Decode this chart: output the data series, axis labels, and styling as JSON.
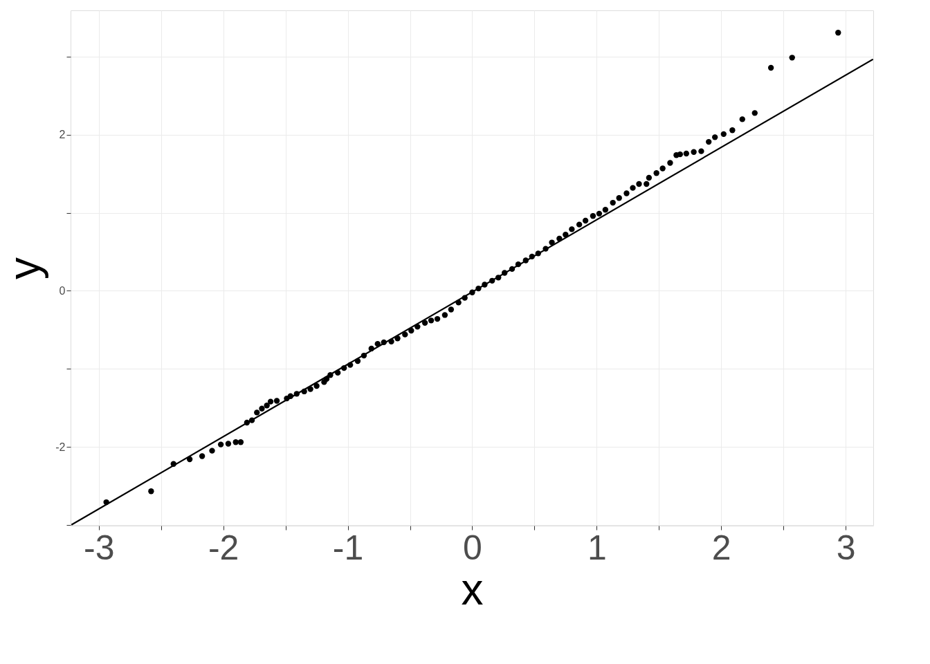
{
  "chart_data": {
    "type": "scatter",
    "xlabel": "x",
    "ylabel": "y",
    "xlim": [
      -3.227,
      3.222
    ],
    "ylim": [
      -3.011,
      3.596
    ],
    "xticks": [
      -3,
      {
        "value": -2.5,
        "label": null
      },
      -2,
      {
        "value": -1.5,
        "label": null
      },
      -1,
      {
        "value": -0.5,
        "label": null
      },
      0,
      {
        "value": 0.5,
        "label": null
      },
      1,
      {
        "value": 1.5,
        "label": null
      },
      2,
      {
        "value": 2.5,
        "label": null
      },
      3
    ],
    "yticks": [
      {
        "value": -3,
        "label": null
      },
      -2,
      {
        "value": -1,
        "label": null
      },
      0,
      {
        "value": 1,
        "label": null
      },
      2,
      {
        "value": 3,
        "label": null
      }
    ],
    "grid": true,
    "series": [
      {
        "color": "#000000",
        "marker": "circle",
        "x": [
          -2.94,
          -2.58,
          -2.4,
          -2.27,
          -2.17,
          -2.09,
          -2.02,
          -1.96,
          -1.9,
          -1.86,
          -1.81,
          -1.77,
          -1.73,
          -1.69,
          -1.65,
          -1.62,
          -1.57,
          -1.49,
          -1.46,
          -1.41,
          -1.35,
          -1.3,
          -1.25,
          -1.19,
          -1.17,
          -1.14,
          -1.08,
          -1.03,
          -0.98,
          -0.92,
          -0.87,
          -0.81,
          -0.76,
          -0.71,
          -0.65,
          -0.6,
          -0.54,
          -0.49,
          -0.44,
          -0.38,
          -0.33,
          -0.28,
          -0.22,
          -0.17,
          -0.11,
          -0.06,
          0.0,
          0.05,
          0.1,
          0.16,
          0.21,
          0.26,
          0.32,
          0.37,
          0.43,
          0.48,
          0.53,
          0.59,
          0.64,
          0.7,
          0.75,
          0.8,
          0.86,
          0.91,
          0.97,
          1.02,
          1.07,
          1.13,
          1.18,
          1.24,
          1.29,
          1.34,
          1.4,
          1.42,
          1.48,
          1.53,
          1.59,
          1.64,
          1.67,
          1.72,
          1.78,
          1.84,
          1.9,
          1.95,
          2.02,
          2.09,
          2.17,
          2.27,
          2.4,
          2.57,
          2.94
        ],
        "values": [
          -2.71,
          -2.57,
          -2.22,
          -2.16,
          -2.12,
          -2.05,
          -1.97,
          -1.96,
          -1.94,
          -1.94,
          -1.69,
          -1.66,
          -1.56,
          -1.51,
          -1.47,
          -1.42,
          -1.41,
          -1.38,
          -1.35,
          -1.32,
          -1.29,
          -1.26,
          -1.22,
          -1.17,
          -1.13,
          -1.08,
          -1.05,
          -0.99,
          -0.95,
          -0.9,
          -0.83,
          -0.74,
          -0.68,
          -0.66,
          -0.65,
          -0.61,
          -0.56,
          -0.51,
          -0.46,
          -0.41,
          -0.38,
          -0.36,
          -0.31,
          -0.24,
          -0.15,
          -0.09,
          -0.02,
          0.03,
          0.08,
          0.13,
          0.17,
          0.23,
          0.28,
          0.34,
          0.39,
          0.44,
          0.48,
          0.54,
          0.62,
          0.67,
          0.72,
          0.79,
          0.85,
          0.9,
          0.96,
          0.99,
          1.04,
          1.13,
          1.19,
          1.25,
          1.32,
          1.37,
          1.37,
          1.45,
          1.51,
          1.57,
          1.64,
          1.74,
          1.75,
          1.76,
          1.78,
          1.79,
          1.91,
          1.97,
          2.01,
          2.06,
          2.2,
          2.28,
          2.86,
          2.99,
          3.31
        ]
      },
      {
        "type": "line",
        "color": "#000000",
        "line_style": "solid",
        "x": [
          -3.22,
          3.22
        ],
        "values": [
          -3.0,
          2.97
        ]
      }
    ]
  }
}
